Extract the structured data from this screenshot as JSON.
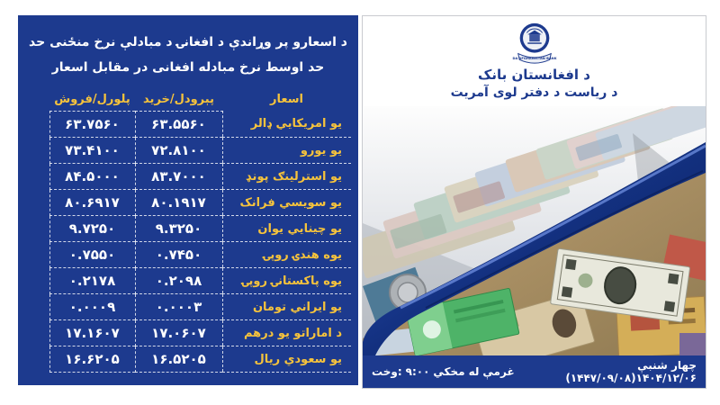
{
  "colors": {
    "panel_blue": "#1d3a8e",
    "accent_yellow": "#f6c33c",
    "text_white": "#ffffff",
    "bank_text_blue": "#1d3a8e"
  },
  "rates_panel": {
    "title_line1": "د اسعارو پر وړاندې د افغانۍ د مبادلې نرخ منځنی حد",
    "title_line2": "حد اوسط نرخ مبادله افغانی در مقابل اسعار",
    "col_currency": "اسعار",
    "col_buy": "پېرودل/خرید",
    "col_sell": "پلورل/فروش",
    "rows": [
      {
        "name": "یو امریکایي ډالر",
        "buy": "۶۳.۵۵۶۰",
        "sell": "۶۳.۷۵۶۰"
      },
      {
        "name": "یو یورو",
        "buy": "۷۲.۸۱۰۰",
        "sell": "۷۳.۴۱۰۰"
      },
      {
        "name": "یو استرلینګ پونډ",
        "buy": "۸۳.۷۰۰۰",
        "sell": "۸۴.۵۰۰۰"
      },
      {
        "name": "یو سویسي فرانک",
        "buy": "۸۰.۱۹۱۷",
        "sell": "۸۰.۶۹۱۷"
      },
      {
        "name": "یو چینایي یوان",
        "buy": "۹.۳۲۵۰",
        "sell": "۹.۷۲۵۰"
      },
      {
        "name": "یوه هندۍ روپۍ",
        "buy": "۰.۷۴۵۰",
        "sell": "۰.۷۵۵۰"
      },
      {
        "name": "یوه پاکستانۍ روپۍ",
        "buy": "۰.۲۰۹۸",
        "sell": "۰.۲۱۷۸"
      },
      {
        "name": "یو ایراني تومان",
        "buy": "۰.۰۰۰۳",
        "sell": "۰.۰۰۰۹"
      },
      {
        "name": "د اماراتو یو درهم",
        "buy": "۱۷.۰۶۰۷",
        "sell": "۱۷.۱۶۰۷"
      },
      {
        "name": "یو سعودي ریال",
        "buy": "۱۶.۵۲۰۵",
        "sell": "۱۶.۶۲۰۵"
      }
    ]
  },
  "bank_panel": {
    "logo_banner": "DA AFGHANISTAN BANK",
    "bank_name": "د افغانستان بانک",
    "department": "د ریاست د دفتر لوی آمریت",
    "footer_date": "چهار شنبې ۱۴۰۴/۱۲/۰۶(۱۴۴۷/۰۹/۰۸)",
    "footer_time": "وخت:۹:۰۰ مخکي له غرمې"
  }
}
